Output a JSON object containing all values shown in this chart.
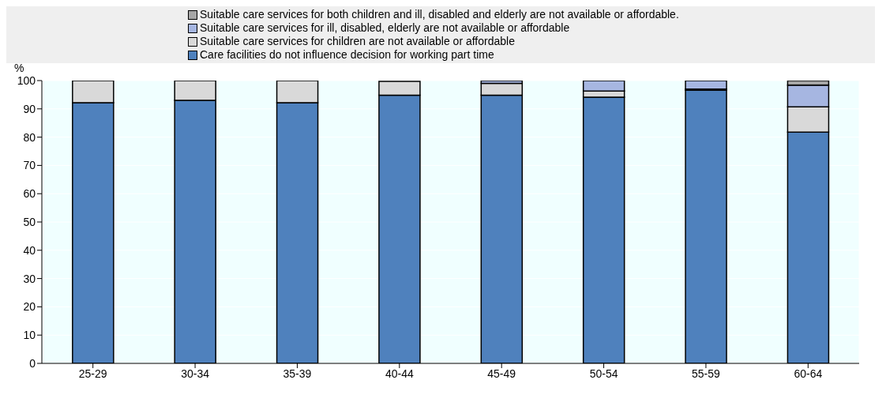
{
  "chart_data": {
    "type": "bar",
    "stacked": true,
    "ylabel": "%",
    "categories": [
      "25-29",
      "30-34",
      "35-39",
      "40-44",
      "45-49",
      "50-54",
      "55-59",
      "60-64"
    ],
    "series": [
      {
        "name": "Care facilities do not influence decision for working part time",
        "color": "#4f81bd",
        "values": [
          92.2,
          93,
          92.2,
          94.8,
          94.8,
          94.1,
          96.6,
          81.8
        ]
      },
      {
        "name": "Suitable care services for children are not available or affordable",
        "color": "#d9d9d9",
        "values": [
          7.8,
          7,
          7.8,
          4.9,
          4.2,
          2.2,
          0.4,
          8.9
        ]
      },
      {
        "name": "Suitable care services for ill, disabled, elderly are not available or affordable",
        "color": "#a6b6e1",
        "values": [
          0,
          0,
          0,
          null,
          1,
          3.7,
          3,
          7.7
        ]
      },
      {
        "name": "Suitable care services for both children and ill, disabled and elderly are not available or affordable.",
        "color": "#a6a6a6",
        "values": [
          0,
          0,
          0,
          0,
          0,
          0,
          0,
          1.6
        ]
      }
    ],
    "ylim": [
      0,
      100
    ],
    "yticks": [
      0,
      10,
      20,
      30,
      40,
      50,
      60,
      70,
      80,
      90,
      100
    ],
    "grid": true,
    "legend": "top"
  }
}
